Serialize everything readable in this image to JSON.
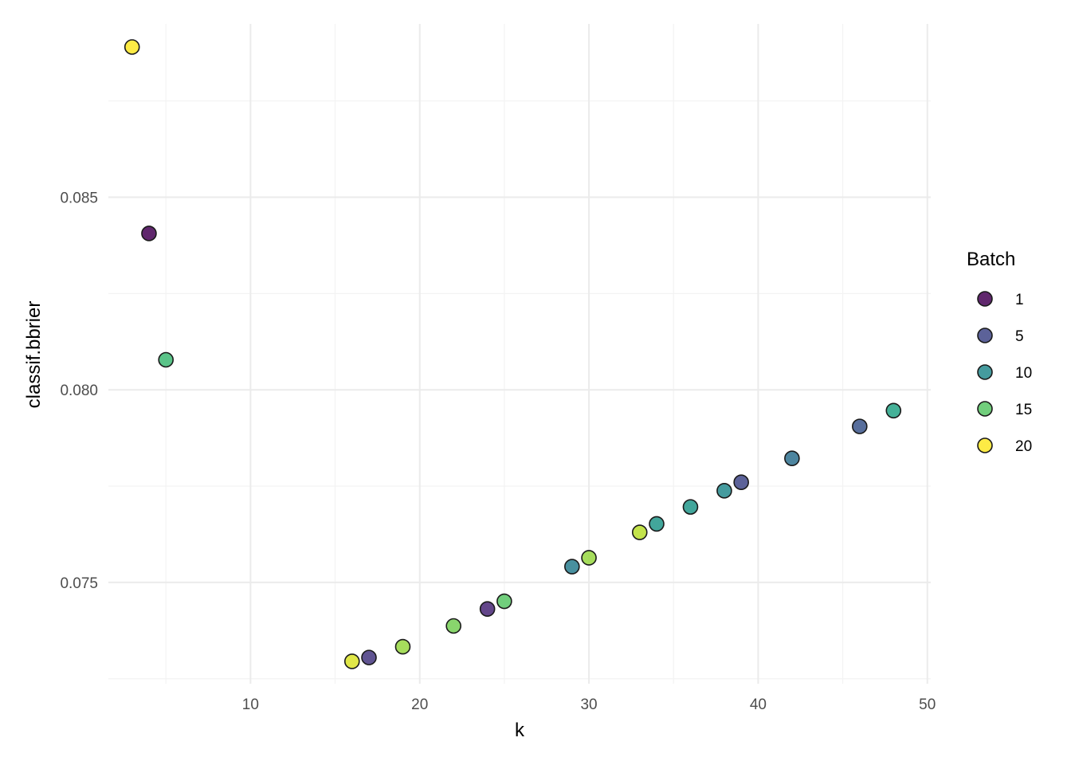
{
  "chart_data": {
    "type": "scatter",
    "xlabel": "k",
    "ylabel": "classif.bbrier",
    "xlim": [
      1.6,
      50.2
    ],
    "ylim": [
      0.07237,
      0.0895
    ],
    "x_ticks": [
      10,
      20,
      30,
      40,
      50
    ],
    "y_ticks": [
      0.075,
      0.08,
      0.085
    ],
    "y_tick_labels": [
      "0.075",
      "0.080",
      "0.085"
    ],
    "x_minor_ticks": [
      5,
      15,
      25,
      35,
      45
    ],
    "y_minor_ticks": [
      0.0725,
      0.0775,
      0.0825,
      0.0875
    ],
    "grid": true,
    "legend": {
      "title": "Batch",
      "position": "right",
      "entries": [
        {
          "label": "1",
          "batch": 1
        },
        {
          "label": "5",
          "batch": 5
        },
        {
          "label": "10",
          "batch": 10
        },
        {
          "label": "15",
          "batch": 15
        },
        {
          "label": "20",
          "batch": 20
        }
      ]
    },
    "batch_range": [
      1,
      20
    ],
    "points": [
      {
        "x": 3,
        "y": 0.0889,
        "batch": 20
      },
      {
        "x": 4,
        "y": 0.08406,
        "batch": 1
      },
      {
        "x": 5,
        "y": 0.08078,
        "batch": 14
      },
      {
        "x": 16,
        "y": 0.07295,
        "batch": 19
      },
      {
        "x": 17,
        "y": 0.07305,
        "batch": 4
      },
      {
        "x": 19,
        "y": 0.07333,
        "batch": 17
      },
      {
        "x": 22,
        "y": 0.07387,
        "batch": 16
      },
      {
        "x": 24,
        "y": 0.07431,
        "batch": 3
      },
      {
        "x": 25,
        "y": 0.07451,
        "batch": 15
      },
      {
        "x": 29,
        "y": 0.07541,
        "batch": 9
      },
      {
        "x": 30,
        "y": 0.07564,
        "batch": 17
      },
      {
        "x": 33,
        "y": 0.0763,
        "batch": 18
      },
      {
        "x": 34,
        "y": 0.07652,
        "batch": 11
      },
      {
        "x": 36,
        "y": 0.07696,
        "batch": 11
      },
      {
        "x": 38,
        "y": 0.07738,
        "batch": 10
      },
      {
        "x": 39,
        "y": 0.0776,
        "batch": 5
      },
      {
        "x": 42,
        "y": 0.07822,
        "batch": 8
      },
      {
        "x": 46,
        "y": 0.07905,
        "batch": 6
      },
      {
        "x": 48,
        "y": 0.07946,
        "batch": 12
      }
    ]
  },
  "colors": {
    "viridis": [
      "#440154",
      "#482878",
      "#3E4A89",
      "#31688E",
      "#26828E",
      "#1F9E89",
      "#35B779",
      "#6DCD59",
      "#B4DE2C",
      "#FDE725"
    ],
    "grid_major": "#ebebeb",
    "grid_minor": "#f3f3f3",
    "point_outline": "#1a1a1a"
  }
}
